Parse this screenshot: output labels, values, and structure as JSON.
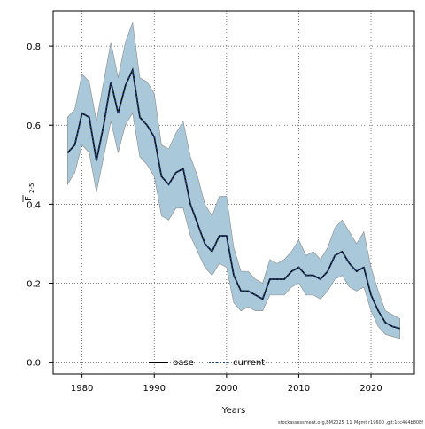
{
  "chart_data": {
    "type": "line",
    "xlabel": "Years",
    "ylabel_main": "F",
    "ylabel_sub": "2-5",
    "xlim": [
      1976,
      2026
    ],
    "ylim": [
      -0.03,
      0.89
    ],
    "x_ticks": [
      1980,
      1990,
      2000,
      2010,
      2020
    ],
    "y_ticks": [
      0.0,
      0.2,
      0.4,
      0.6,
      0.8
    ],
    "x_tick_labels": [
      "1980",
      "1990",
      "2000",
      "2010",
      "2020"
    ],
    "y_tick_labels": [
      "0.0",
      "0.2",
      "0.4",
      "0.6",
      "0.8"
    ],
    "grid": true,
    "legend_position": "bottom-center",
    "colors": {
      "band": "#a9c8da",
      "band_edge": "#8a8a8a",
      "base": "#000000",
      "current": "#1b3f73"
    },
    "years": [
      1978,
      1979,
      1980,
      1981,
      1982,
      1983,
      1984,
      1985,
      1986,
      1987,
      1988,
      1989,
      1990,
      1991,
      1992,
      1993,
      1994,
      1995,
      1996,
      1997,
      1998,
      1999,
      2000,
      2001,
      2002,
      2003,
      2004,
      2005,
      2006,
      2007,
      2008,
      2009,
      2010,
      2011,
      2012,
      2013,
      2014,
      2015,
      2016,
      2017,
      2018,
      2019,
      2020,
      2021,
      2022,
      2023,
      2024
    ],
    "series": [
      {
        "name": "base",
        "style": "solid",
        "values": [
          0.53,
          0.55,
          0.63,
          0.62,
          0.51,
          0.6,
          0.71,
          0.63,
          0.7,
          0.74,
          0.62,
          0.6,
          0.57,
          0.47,
          0.45,
          0.48,
          0.49,
          0.4,
          0.35,
          0.3,
          0.28,
          0.32,
          0.32,
          0.22,
          0.18,
          0.18,
          0.17,
          0.16,
          0.21,
          0.21,
          0.21,
          0.23,
          0.24,
          0.22,
          0.22,
          0.21,
          0.23,
          0.27,
          0.28,
          0.25,
          0.23,
          0.24,
          0.17,
          0.13,
          0.1,
          0.09,
          0.085
        ]
      },
      {
        "name": "current",
        "style": "dotted",
        "values": [
          0.53,
          0.55,
          0.63,
          0.62,
          0.51,
          0.6,
          0.71,
          0.63,
          0.7,
          0.74,
          0.62,
          0.6,
          0.57,
          0.47,
          0.45,
          0.48,
          0.49,
          0.4,
          0.35,
          0.3,
          0.28,
          0.32,
          0.32,
          0.22,
          0.18,
          0.18,
          0.17,
          0.16,
          0.21,
          0.21,
          0.21,
          0.23,
          0.24,
          0.22,
          0.22,
          0.21,
          0.23,
          0.27,
          0.28,
          0.25,
          0.23,
          0.24,
          0.17,
          0.13,
          0.1,
          0.09,
          0.085
        ]
      }
    ],
    "band": {
      "upper": [
        0.62,
        0.64,
        0.73,
        0.71,
        0.61,
        0.71,
        0.81,
        0.72,
        0.81,
        0.86,
        0.72,
        0.71,
        0.68,
        0.55,
        0.54,
        0.58,
        0.61,
        0.52,
        0.47,
        0.4,
        0.37,
        0.42,
        0.42,
        0.29,
        0.23,
        0.23,
        0.21,
        0.2,
        0.26,
        0.25,
        0.26,
        0.28,
        0.31,
        0.27,
        0.28,
        0.26,
        0.29,
        0.34,
        0.36,
        0.33,
        0.3,
        0.33,
        0.24,
        0.18,
        0.13,
        0.12,
        0.11
      ],
      "lower": [
        0.45,
        0.48,
        0.55,
        0.53,
        0.43,
        0.52,
        0.61,
        0.53,
        0.6,
        0.63,
        0.52,
        0.5,
        0.47,
        0.37,
        0.36,
        0.39,
        0.39,
        0.32,
        0.28,
        0.24,
        0.22,
        0.25,
        0.24,
        0.15,
        0.13,
        0.14,
        0.13,
        0.13,
        0.17,
        0.17,
        0.17,
        0.19,
        0.2,
        0.17,
        0.17,
        0.16,
        0.18,
        0.21,
        0.22,
        0.19,
        0.18,
        0.19,
        0.13,
        0.09,
        0.07,
        0.065,
        0.06
      ]
    }
  },
  "footer": "stockassessment.org,BM2025_11_Mgmt r19600 ,git:1cc464b808f"
}
